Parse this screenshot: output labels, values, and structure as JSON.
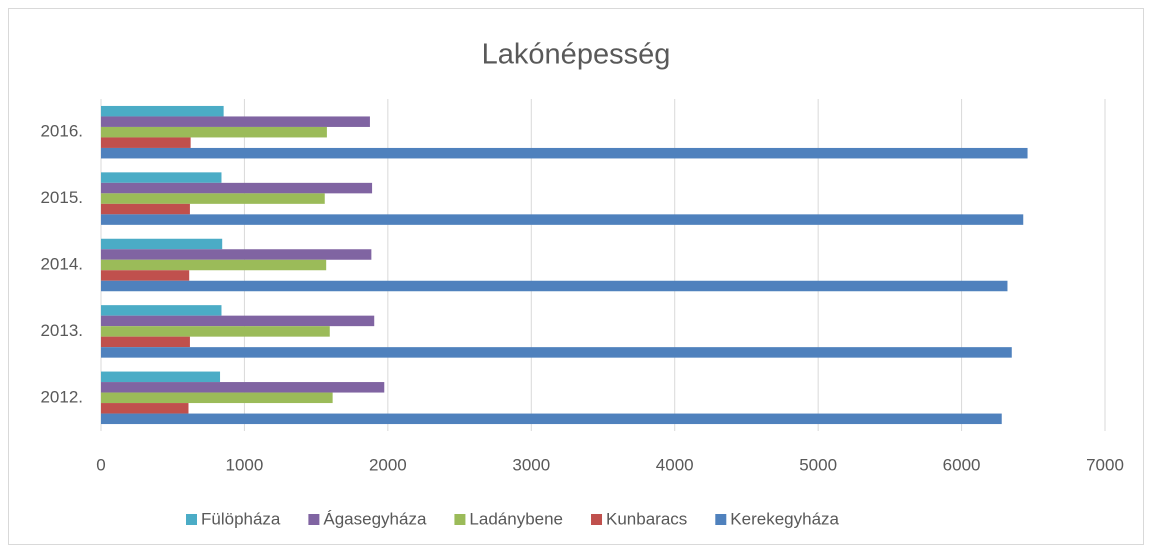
{
  "chart_data": {
    "type": "hbar",
    "title": "Lakónépesség",
    "categories": [
      "2012.",
      "2013.",
      "2014.",
      "2015.",
      "2016."
    ],
    "series": [
      {
        "name": "Fülöpháza",
        "color": "#4bacc6",
        "values": [
          830,
          840,
          845,
          840,
          855
        ]
      },
      {
        "name": "Ágasegyháza",
        "color": "#8064a2",
        "values": [
          1975,
          1905,
          1885,
          1890,
          1875
        ]
      },
      {
        "name": "Ladánybene",
        "color": "#9bbb59",
        "values": [
          1615,
          1595,
          1570,
          1560,
          1575
        ]
      },
      {
        "name": "Kunbaracs",
        "color": "#c0504d",
        "values": [
          610,
          620,
          615,
          620,
          625
        ]
      },
      {
        "name": "Kerekegyháza",
        "color": "#4f81bd",
        "values": [
          6280,
          6350,
          6320,
          6430,
          6460
        ]
      }
    ],
    "xlim": [
      0,
      7000
    ],
    "xticks": [
      0,
      1000,
      2000,
      3000,
      4000,
      5000,
      6000,
      7000
    ],
    "grid": true,
    "legend": "bottom"
  }
}
